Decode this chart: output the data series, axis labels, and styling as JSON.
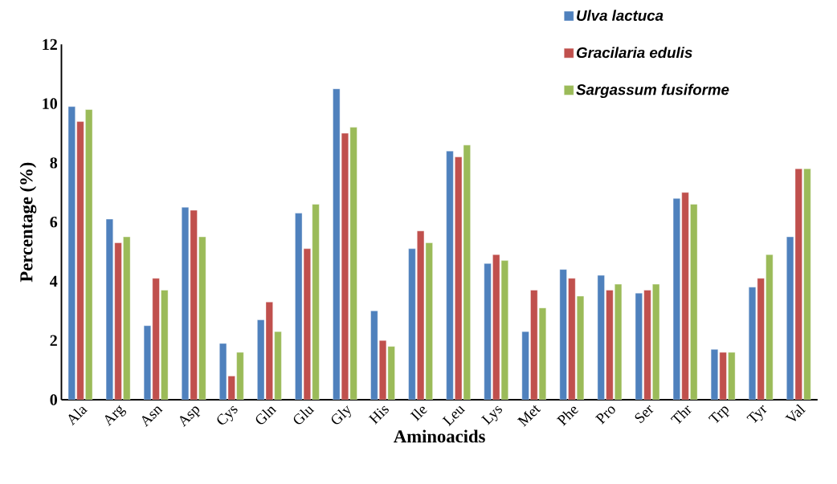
{
  "chart_data": {
    "type": "bar",
    "xlabel": "Aminoacids",
    "ylabel": "Percentage (%)",
    "categories": [
      "Ala",
      "Arg",
      "Asn",
      "Asp",
      "Cys",
      "Gln",
      "Glu",
      "Gly",
      "His",
      "Ile",
      "Leu",
      "Lys",
      "Met",
      "Phe",
      "Pro",
      "Ser",
      "Thr",
      "Trp",
      "Tyr",
      "Val"
    ],
    "series": [
      {
        "name": "Ulva lactuca",
        "color": "#4f81bd",
        "values": [
          9.9,
          6.1,
          2.5,
          6.5,
          1.9,
          2.7,
          6.3,
          10.5,
          3.0,
          5.1,
          8.4,
          4.6,
          2.3,
          4.4,
          4.2,
          3.6,
          6.8,
          1.7,
          3.8,
          5.5
        ]
      },
      {
        "name": "Gracilaria edulis",
        "color": "#c0504d",
        "values": [
          9.4,
          5.3,
          4.1,
          6.4,
          0.8,
          3.3,
          5.1,
          9.0,
          2.0,
          5.7,
          8.2,
          4.9,
          3.7,
          4.1,
          3.7,
          3.7,
          7.0,
          1.6,
          4.1,
          7.8
        ]
      },
      {
        "name": "Sargassum fusiforme",
        "color": "#9bbb59",
        "values": [
          9.8,
          5.5,
          3.7,
          5.5,
          1.6,
          2.3,
          6.6,
          9.2,
          1.8,
          5.3,
          8.6,
          4.7,
          3.1,
          3.5,
          3.9,
          3.9,
          6.6,
          1.6,
          4.9,
          7.8
        ]
      }
    ],
    "ylim": [
      0,
      12
    ],
    "yticks": [
      0,
      2,
      4,
      6,
      8,
      10,
      12
    ],
    "grid": false,
    "legend": "top right"
  }
}
